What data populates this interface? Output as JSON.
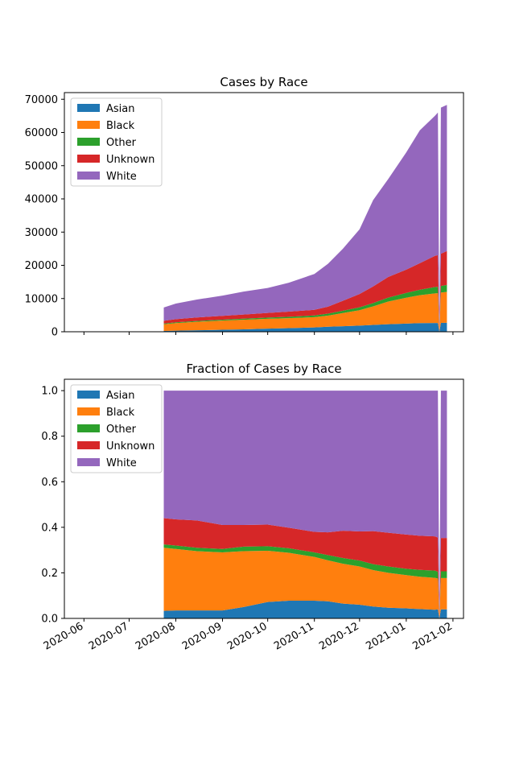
{
  "chart_data": [
    {
      "type": "area",
      "stacked": true,
      "title": "Cases by Race",
      "xlabel": "",
      "ylabel": "",
      "ylim": [
        0,
        72000
      ],
      "yticks": [
        0,
        10000,
        20000,
        30000,
        40000,
        50000,
        60000,
        70000
      ],
      "xlim": [
        "2020-05-19",
        "2021-02-08"
      ],
      "grid": false,
      "legend": "top-left",
      "x": [
        "2020-07-24",
        "2020-08-01",
        "2020-08-15",
        "2020-09-01",
        "2020-09-15",
        "2020-10-01",
        "2020-10-15",
        "2020-11-01",
        "2020-11-10",
        "2020-11-20",
        "2020-12-01",
        "2020-12-10",
        "2020-12-20",
        "2021-01-01",
        "2021-01-10",
        "2021-01-20",
        "2021-01-22",
        "2021-01-23",
        "2021-01-24",
        "2021-01-28"
      ],
      "series": [
        {
          "name": "Asian",
          "color": "#1f77b4",
          "values": [
            250,
            320,
            450,
            600,
            720,
            950,
            1100,
            1300,
            1500,
            1680,
            1850,
            2050,
            2280,
            2450,
            2600,
            2650,
            2650,
            0,
            2680,
            2700
          ]
        },
        {
          "name": "Black",
          "color": "#ff7f0e",
          "values": [
            2000,
            2300,
            2550,
            2750,
            2900,
            2950,
            3000,
            3100,
            3350,
            3950,
            4650,
            5600,
            6800,
            7800,
            8400,
            8900,
            8950,
            0,
            9100,
            9300
          ]
        },
        {
          "name": "Other",
          "color": "#2ca02c",
          "values": [
            200,
            220,
            250,
            280,
            320,
            380,
            420,
            500,
            600,
            700,
            850,
            1000,
            1200,
            1450,
            1650,
            1900,
            1950,
            0,
            2000,
            2100
          ]
        },
        {
          "name": "Unknown",
          "color": "#d62728",
          "values": [
            850,
            950,
            1050,
            1150,
            1250,
            1400,
            1550,
            1700,
            2100,
            3000,
            4000,
            5000,
            6200,
            7000,
            8000,
            9400,
            9500,
            0,
            9700,
            10200
          ]
        },
        {
          "name": "White",
          "color": "#9467bd",
          "values": [
            4000,
            4700,
            5400,
            6100,
            6900,
            7500,
            8700,
            10800,
            12900,
            15700,
            19500,
            26000,
            29500,
            35300,
            40000,
            42150,
            42950,
            0,
            44000,
            44000
          ]
        }
      ]
    },
    {
      "type": "area",
      "stacked": true,
      "title": "Fraction of Cases by Race",
      "xlabel": "",
      "ylabel": "",
      "ylim": [
        0,
        1.05
      ],
      "yticks": [
        "0.0",
        "0.2",
        "0.4",
        "0.6",
        "0.8",
        "1.0"
      ],
      "xlim": [
        "2020-05-19",
        "2021-02-08"
      ],
      "xticks": [
        "2020-06",
        "2020-07",
        "2020-08",
        "2020-09",
        "2020-10",
        "2020-11",
        "2020-12",
        "2021-01",
        "2021-02"
      ],
      "grid": false,
      "legend": "top-left",
      "x": [
        "2020-07-24",
        "2020-08-01",
        "2020-08-15",
        "2020-09-01",
        "2020-09-15",
        "2020-10-01",
        "2020-10-15",
        "2020-11-01",
        "2020-11-10",
        "2020-11-20",
        "2020-12-01",
        "2020-12-10",
        "2020-12-20",
        "2021-01-01",
        "2021-01-10",
        "2021-01-20",
        "2021-01-22",
        "2021-01-23",
        "2021-01-24",
        "2021-01-28"
      ],
      "series": [
        {
          "name": "Asian",
          "color": "#1f77b4",
          "values": [
            0.033,
            0.035,
            0.035,
            0.035,
            0.05,
            0.072,
            0.078,
            0.078,
            0.075,
            0.065,
            0.06,
            0.052,
            0.047,
            0.044,
            0.041,
            0.038,
            0.04,
            0,
            0.04,
            0.04
          ]
        },
        {
          "name": "Black",
          "color": "#ff7f0e",
          "values": [
            0.277,
            0.27,
            0.26,
            0.255,
            0.245,
            0.225,
            0.21,
            0.192,
            0.18,
            0.175,
            0.168,
            0.16,
            0.153,
            0.146,
            0.142,
            0.14,
            0.135,
            0,
            0.137,
            0.137
          ]
        },
        {
          "name": "Other",
          "color": "#2ca02c",
          "values": [
            0.015,
            0.015,
            0.015,
            0.015,
            0.02,
            0.02,
            0.02,
            0.02,
            0.023,
            0.025,
            0.026,
            0.026,
            0.028,
            0.028,
            0.03,
            0.032,
            0.03,
            0,
            0.03,
            0.03
          ]
        },
        {
          "name": "Unknown",
          "color": "#d62728",
          "values": [
            0.115,
            0.115,
            0.12,
            0.105,
            0.095,
            0.095,
            0.09,
            0.09,
            0.1,
            0.12,
            0.128,
            0.145,
            0.148,
            0.15,
            0.15,
            0.15,
            0.15,
            0,
            0.146,
            0.146
          ]
        },
        {
          "name": "White",
          "color": "#9467bd",
          "values": [
            0.56,
            0.565,
            0.57,
            0.59,
            0.59,
            0.588,
            0.602,
            0.62,
            0.622,
            0.615,
            0.618,
            0.617,
            0.624,
            0.632,
            0.637,
            0.64,
            0.645,
            0,
            0.647,
            0.647
          ]
        }
      ]
    }
  ]
}
